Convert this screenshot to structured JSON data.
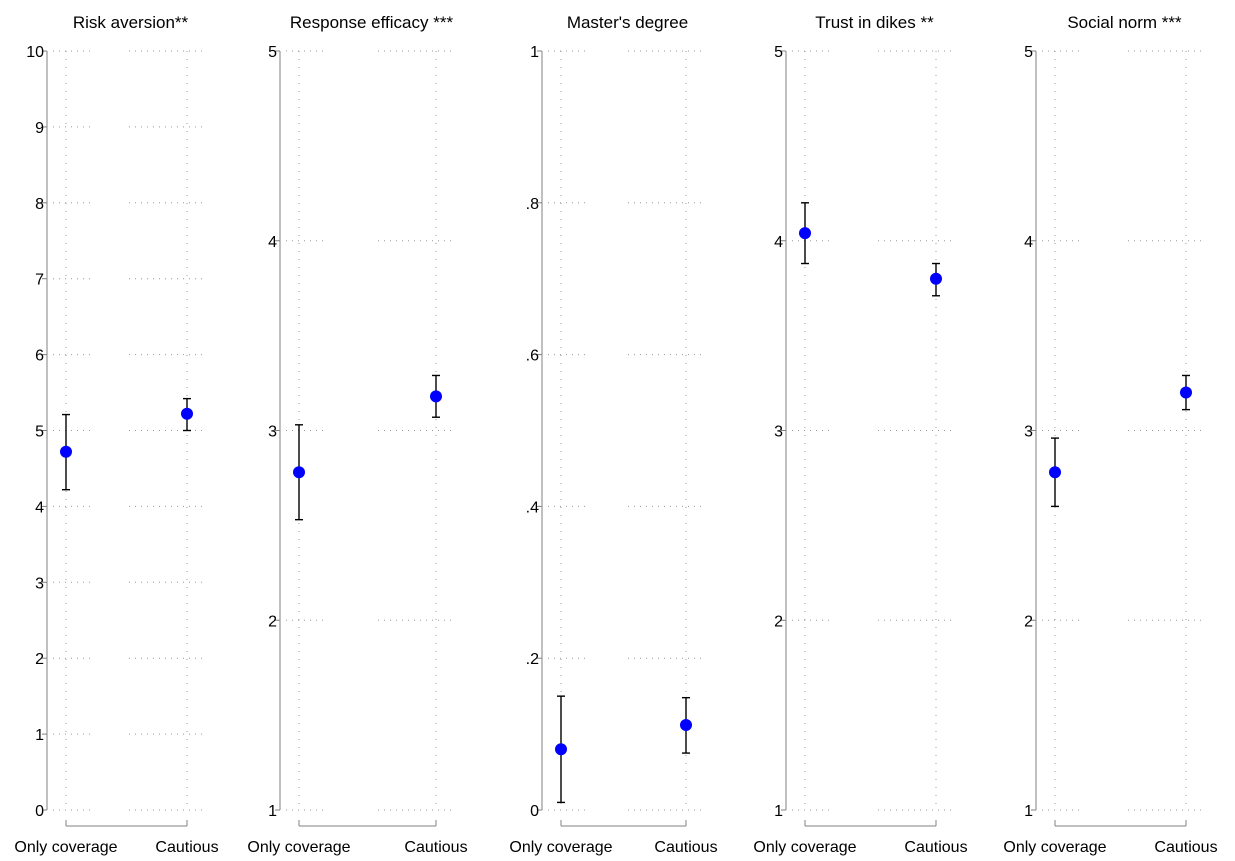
{
  "colors": {
    "marker": "#0000ff",
    "errorbar": "#000000",
    "axis": "#808080",
    "grid": "#9a9a9a"
  },
  "chart_data": [
    {
      "type": "scatter",
      "title": "Risk aversion**",
      "categories": [
        "Only coverage",
        "Cautious"
      ],
      "ylim": [
        0,
        10
      ],
      "yticks": [
        0,
        1,
        2,
        3,
        4,
        5,
        6,
        7,
        8,
        9,
        10
      ],
      "ytick_labels": [
        "0",
        "1",
        "2",
        "3",
        "4",
        "5",
        "6",
        "7",
        "8",
        "9",
        "10"
      ],
      "series": [
        {
          "values": [
            4.72,
            5.22
          ],
          "ci_low": [
            4.22,
            5.0
          ],
          "ci_high": [
            5.21,
            5.42
          ]
        }
      ],
      "grid": true
    },
    {
      "type": "scatter",
      "title": "Response efficacy ***",
      "categories": [
        "Only coverage",
        "Cautious"
      ],
      "ylim": [
        1,
        5
      ],
      "yticks": [
        1,
        2,
        3,
        4,
        5
      ],
      "ytick_labels": [
        "1",
        "2",
        "3",
        "4",
        "5"
      ],
      "series": [
        {
          "values": [
            2.78,
            3.18
          ],
          "ci_low": [
            2.53,
            3.07
          ],
          "ci_high": [
            3.03,
            3.29
          ]
        }
      ],
      "grid": true
    },
    {
      "type": "scatter",
      "title": "Master's degree",
      "categories": [
        "Only coverage",
        "Cautious"
      ],
      "ylim": [
        0,
        1
      ],
      "yticks": [
        0,
        0.2,
        0.4,
        0.6,
        0.8,
        1
      ],
      "ytick_labels": [
        "0",
        ".2",
        ".4",
        ".6",
        ".8",
        "1"
      ],
      "series": [
        {
          "values": [
            0.08,
            0.112
          ],
          "ci_low": [
            0.01,
            0.075
          ],
          "ci_high": [
            0.15,
            0.148
          ]
        }
      ],
      "grid": true
    },
    {
      "type": "scatter",
      "title": "Trust in dikes **",
      "categories": [
        "Only coverage",
        "Cautious"
      ],
      "ylim": [
        1,
        5
      ],
      "yticks": [
        1,
        2,
        3,
        4,
        5
      ],
      "ytick_labels": [
        "1",
        "2",
        "3",
        "4",
        "5"
      ],
      "series": [
        {
          "values": [
            4.04,
            3.8
          ],
          "ci_low": [
            3.88,
            3.71
          ],
          "ci_high": [
            4.2,
            3.88
          ]
        }
      ],
      "grid": true
    },
    {
      "type": "scatter",
      "title": "Social norm ***",
      "categories": [
        "Only coverage",
        "Cautious"
      ],
      "ylim": [
        1,
        5
      ],
      "yticks": [
        1,
        2,
        3,
        4,
        5
      ],
      "ytick_labels": [
        "1",
        "2",
        "3",
        "4",
        "5"
      ],
      "series": [
        {
          "values": [
            2.78,
            3.2
          ],
          "ci_low": [
            2.6,
            3.11
          ],
          "ci_high": [
            2.96,
            3.29
          ]
        }
      ],
      "grid": true
    }
  ]
}
